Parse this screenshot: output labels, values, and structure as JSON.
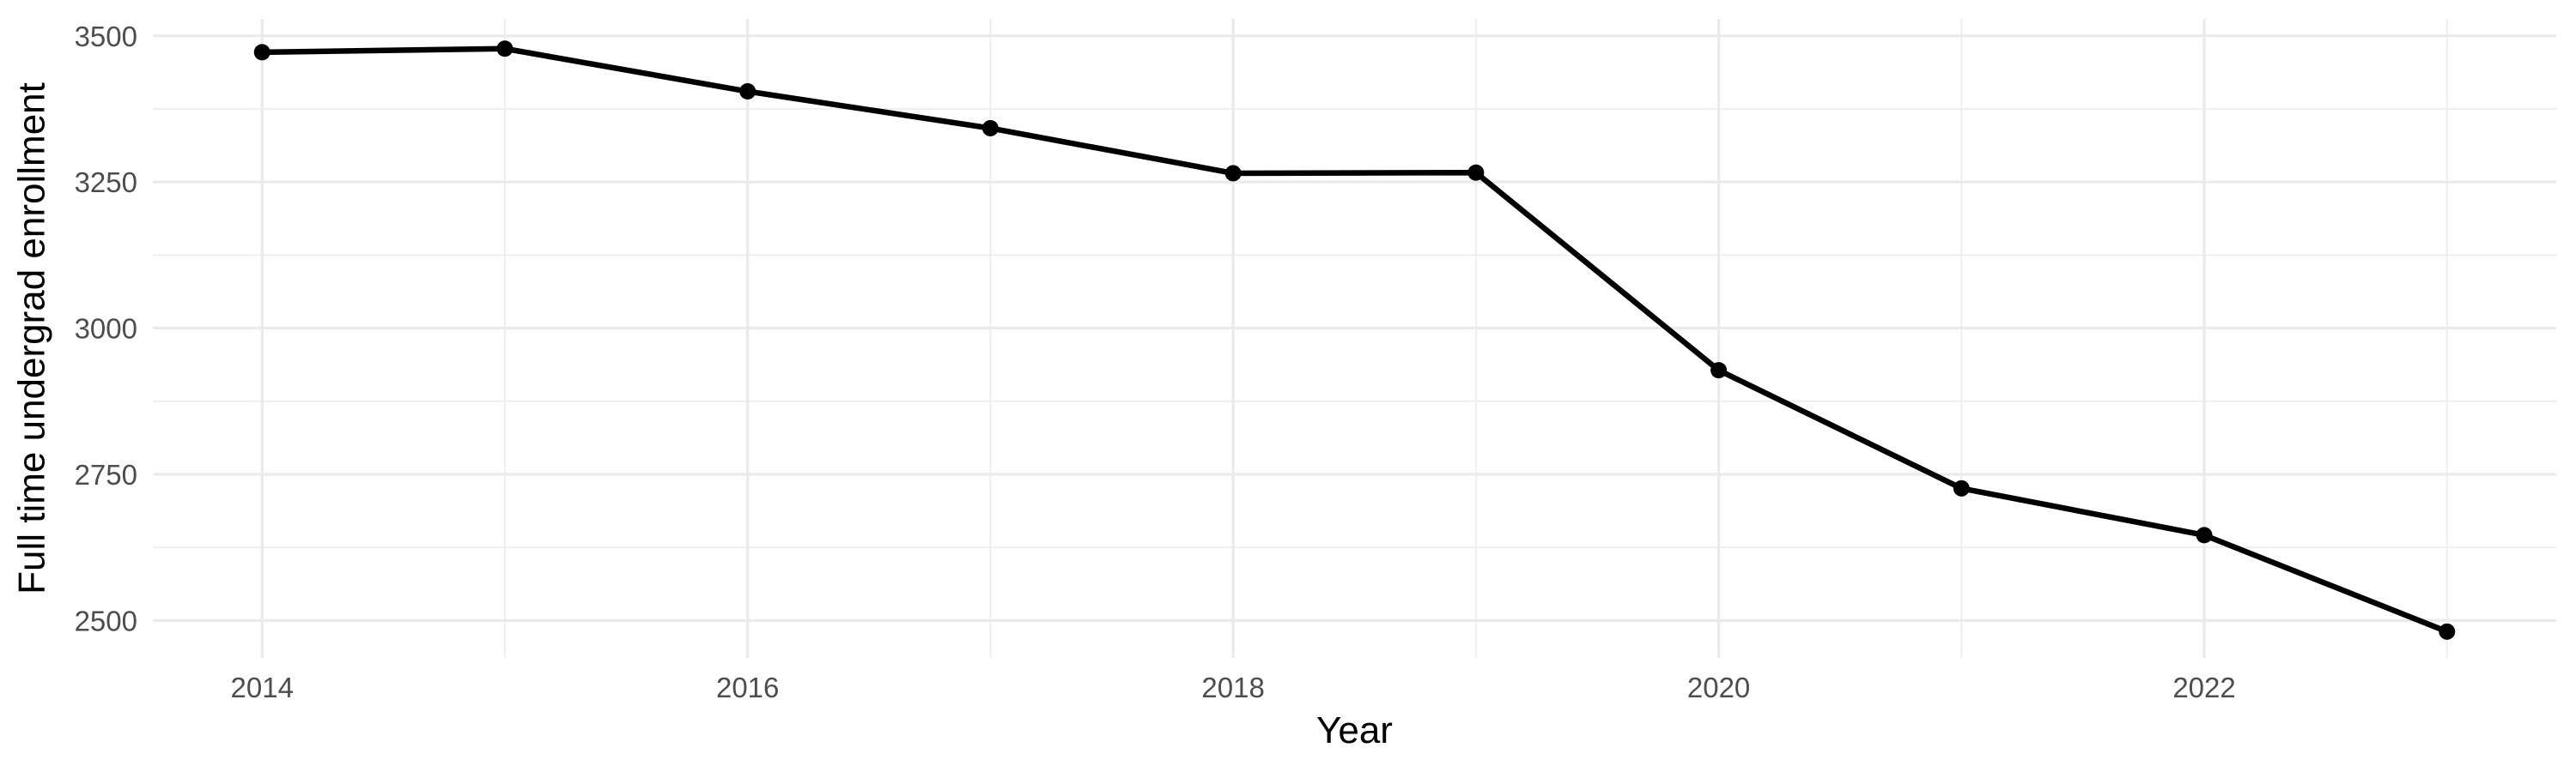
{
  "chart_data": {
    "type": "line",
    "title": "",
    "xlabel": "Year",
    "ylabel": "Full time undergrad enrollment",
    "x": [
      2014,
      2015,
      2016,
      2017,
      2018,
      2019,
      2020,
      2021,
      2022,
      2023
    ],
    "values": [
      3472,
      3478,
      3405,
      3342,
      3265,
      3266,
      2928,
      2726,
      2646,
      2481
    ],
    "series_name": "Full time undergrad enrollment",
    "xlim": [
      2013.55,
      2023.45
    ],
    "ylim": [
      2436,
      3529
    ],
    "x_major_ticks": [
      2014,
      2016,
      2018,
      2020,
      2022
    ],
    "x_minor_gridlines": [
      2015,
      2017,
      2019,
      2021,
      2023
    ],
    "y_major_ticks": [
      2500,
      2750,
      3000,
      3250,
      3500
    ],
    "y_minor_gridlines": [
      2625,
      2875,
      3125,
      3375
    ],
    "grid": "on",
    "legend": "none",
    "colors": {
      "background": "#ffffff",
      "grid_major": "#ebebeb",
      "grid_minor": "#ededed",
      "line": "#000000",
      "point": "#000000",
      "tick_label": "#4d4d4d",
      "axis_title": "#000000"
    }
  }
}
